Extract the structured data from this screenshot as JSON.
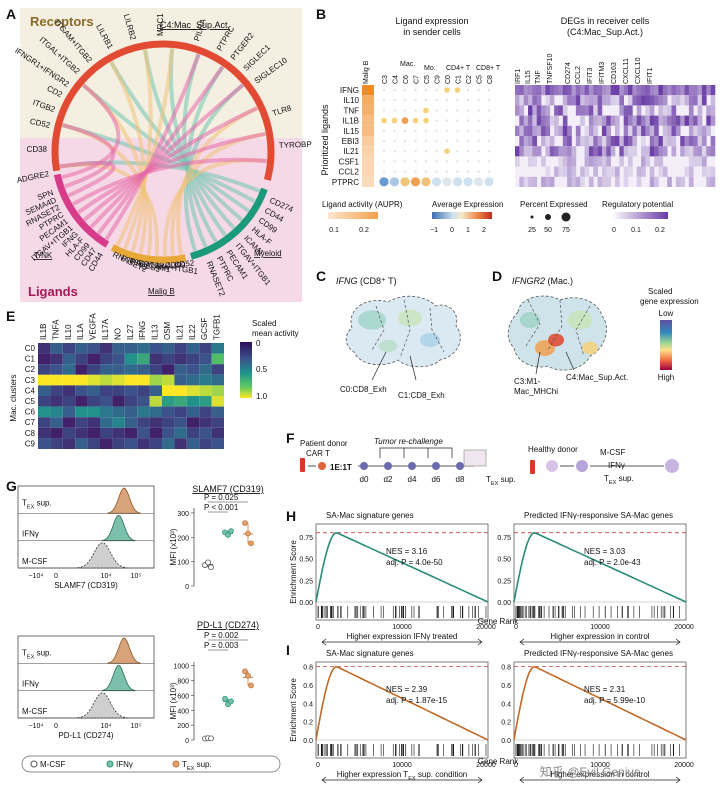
{
  "panel_letters": [
    "A",
    "B",
    "C",
    "D",
    "E",
    "F",
    "G",
    "H",
    "I"
  ],
  "panelA": {
    "receptors_label": "Receptors",
    "ligands_label": "Ligands",
    "receiver_label": "C4:Mac_Sup.Act.",
    "group_labels": [
      "T/NK",
      "Malig B",
      "Myeloid"
    ],
    "receptor_labels": [
      "ADGRE2",
      "CD38",
      "CD52",
      "ITGB2",
      "CD2",
      "IFNGR1+IFNGR2",
      "ITGAL+ITGB2",
      "ITGAM+ITGB2",
      "LILRB1",
      "LILRB2",
      "MRC1",
      "PILRA",
      "PTPRC",
      "PTGER2",
      "SIGLEC1",
      "SIGLEC10",
      "TLR8",
      "TYROBP"
    ],
    "ligand_labels_left": [
      "SPN",
      "SEMA4D",
      "RNASET2",
      "PTPRC",
      "PECAM1",
      "ITGAV+ITGB1",
      "IFNG",
      "HLA-F",
      "CD99",
      "CD47",
      "CD44"
    ],
    "ligand_labels_mid": [
      "RNASET2",
      "PTPRC",
      "PTGES3",
      "PECAM1",
      "ITGAV+ITGB1",
      "HLA-F",
      "CD99",
      "CD52"
    ],
    "ligand_labels_right": [
      "CD274",
      "CD44",
      "CD99",
      "HLA-F",
      "ICAM1",
      "ITGAV+ITGB1",
      "PECAM1",
      "PTPRC",
      "RNASET2"
    ]
  },
  "panelB": {
    "title_ligand": "Ligand expression in sender cells",
    "title_deg": "DEGs in receiver cells (C4:Mac_Sup.Act.)",
    "yaxis_label": "Prioritized ligands",
    "ligands": [
      "IFNG",
      "IL10",
      "TNF",
      "IL1B",
      "IL15",
      "EBI3",
      "IL21",
      "CSF1",
      "CCL2",
      "PTPRC"
    ],
    "activity": [
      0.27,
      0.21,
      0.2,
      0.18,
      0.18,
      0.15,
      0.14,
      0.13,
      0.13,
      0.12
    ],
    "cluster_cols": [
      "C3",
      "C4",
      "C6",
      "C7",
      "C5",
      "C9",
      "C0",
      "C1",
      "C2",
      "C5",
      "C8"
    ],
    "group_headers": [
      "Malig B",
      "Mac.",
      "Mo.",
      "CD4+ T",
      "CD8+ T"
    ],
    "deg_genes": [
      "IRF1",
      "IL15",
      "TNF",
      "TNFSF10",
      "CD274",
      "CCL2",
      "IFIT3",
      "IFITM3",
      "CD163",
      "CXCL11",
      "CXCL10",
      "IFIT1"
    ],
    "legend_activity_title": "Ligand activity (AUPR)",
    "legend_activity_ticks": [
      "0.1",
      "0.2"
    ],
    "legend_expr_title": "Average Expression",
    "legend_expr_ticks": [
      "−1",
      "0",
      "1",
      "2"
    ],
    "legend_pct_title": "Percent Expressed",
    "legend_pct_ticks": [
      "25",
      "50",
      "75"
    ],
    "legend_reg_title": "Regulatory potential",
    "legend_reg_ticks": [
      "0",
      "0.1",
      "0.2"
    ]
  },
  "panelC": {
    "gene": "IFNG",
    "cell": "(CD8⁺ T)",
    "labels": [
      "C0:CD8_Exh",
      "C1:CD8_Exh"
    ]
  },
  "panelD": {
    "gene": "IFNGR2",
    "cell": "(Mac.)",
    "labels": [
      "C3:M1-Mac_MHChi",
      "C4:Mac_Sup.Act."
    ],
    "legend_title": "Scaled gene expression",
    "legend_low": "Low",
    "legend_high": "High"
  },
  "panelE": {
    "cols": [
      "IL1B",
      "TNFA",
      "IL10",
      "IL1A",
      "VEGFA",
      "IL17A",
      "NO",
      "IL27",
      "IFNG",
      "IL13",
      "OSM",
      "IL21",
      "IL22",
      "GCSF",
      "TGFB1"
    ],
    "rows": [
      "C0",
      "C1",
      "C2",
      "C3",
      "C4",
      "C5",
      "C6",
      "C7",
      "C8",
      "C9"
    ],
    "ylabel": "Mac. clusters",
    "legend_title": "Scaled mean activity",
    "legend_ticks": [
      "0",
      "0.5",
      "1.0"
    ],
    "values": [
      [
        0.15,
        0.3,
        0.2,
        0.3,
        0.25,
        0.15,
        0.3,
        0.3,
        0.35,
        0.25,
        0.3,
        0.2,
        0.3,
        0.2,
        0.4
      ],
      [
        0.1,
        0.15,
        0.3,
        0.2,
        0.1,
        0.2,
        0.25,
        0.5,
        0.6,
        0.15,
        0.2,
        0.15,
        0.2,
        0.25,
        0.7
      ],
      [
        0.2,
        0.25,
        0.35,
        0.1,
        0.2,
        0.3,
        0.3,
        0.35,
        0.3,
        0.2,
        0.1,
        0.3,
        0.25,
        0.35,
        0.2
      ],
      [
        1.0,
        1.0,
        1.0,
        1.0,
        0.95,
        0.9,
        0.95,
        1.0,
        1.0,
        0.85,
        0.9,
        0.3,
        0.35,
        0.4,
        0.35
      ],
      [
        0.3,
        0.2,
        0.15,
        0.25,
        0.3,
        0.2,
        0.2,
        0.25,
        0.2,
        0.3,
        1.0,
        1.0,
        0.95,
        0.9,
        0.85
      ],
      [
        0.2,
        0.15,
        0.2,
        0.1,
        0.2,
        0.25,
        0.1,
        0.2,
        0.25,
        0.9,
        0.55,
        0.6,
        0.5,
        0.55,
        0.95
      ],
      [
        0.5,
        0.45,
        0.3,
        0.5,
        0.5,
        0.4,
        0.35,
        0.3,
        0.4,
        0.35,
        0.25,
        0.2,
        0.3,
        0.2,
        0.3
      ],
      [
        0.2,
        0.3,
        0.1,
        0.2,
        0.15,
        0.35,
        0.45,
        0.3,
        0.2,
        0.15,
        0.2,
        0.25,
        0.1,
        0.15,
        0.2
      ],
      [
        0.15,
        0.1,
        0.2,
        0.15,
        0.1,
        0.2,
        0.15,
        0.1,
        0.25,
        0.1,
        0.25,
        0.35,
        0.2,
        0.25,
        0.15
      ],
      [
        0.25,
        0.2,
        0.15,
        0.3,
        0.2,
        0.1,
        0.2,
        0.25,
        0.15,
        0.2,
        0.35,
        0.15,
        0.3,
        0.2,
        0.25
      ]
    ]
  },
  "panelF": {
    "patient_label": "Patient donor",
    "cart_label": "CAR T",
    "ratio": "1E:1T",
    "rechallenge": "Tumor re-challenge",
    "days": [
      "d0",
      "d2",
      "d4",
      "d6",
      "d8"
    ],
    "tex_sup": "T",
    "tex_sub": "EX",
    "tex_suffix": " sup.",
    "healthy_label": "Healthy donor",
    "conditions": [
      "M-CSF",
      "IFNγ",
      "T"
    ],
    "cond_ex_sub": "EX",
    "cond_ex_suffix": " sup."
  },
  "panelG": {
    "top": {
      "title": "SLAMF7 (CD319)",
      "xlabel": "SLAMF7 (CD319)",
      "ylabel": "MFI (x10³)",
      "yticks": [
        0,
        100,
        200,
        300
      ],
      "ylim": [
        0,
        320
      ],
      "pvals": [
        "P = 0.025",
        "P < 0.001"
      ],
      "hist_labels": [
        "T",
        "IFNγ",
        "M-CSF"
      ],
      "xticks": [
        "−10⁴",
        "0",
        "10⁴",
        "10⁵"
      ],
      "groups": [
        {
          "name": "M-CSF",
          "points": [
            86,
            97,
            77
          ],
          "mean": 88
        },
        {
          "name": "IFNγ",
          "points": [
            220,
            210,
            225
          ],
          "mean": 216
        },
        {
          "name": "TEX sup.",
          "points": [
            258,
            215,
            175
          ],
          "mean": 213
        }
      ]
    },
    "bottom": {
      "title": "PD-L1 (CD274)",
      "xlabel": "PD-L1 (CD274)",
      "ylabel": "MFI (x10³)",
      "yticks": [
        0,
        200,
        400,
        600,
        800,
        1000
      ],
      "ylim": [
        0,
        1050
      ],
      "pvals": [
        "P = 0.002",
        "P = 0.003"
      ],
      "hist_labels": [
        "T",
        "IFNγ",
        "M-CSF"
      ],
      "xticks": [
        "−10⁴",
        "0",
        "10⁴",
        "10⁵"
      ],
      "groups": [
        {
          "name": "M-CSF",
          "points": [
            20,
            25,
            22
          ],
          "mean": 22
        },
        {
          "name": "IFNγ",
          "points": [
            555,
            480,
            520
          ],
          "mean": 520
        },
        {
          "name": "TEX sup.",
          "points": [
            925,
            865,
            735
          ],
          "mean": 840
        }
      ]
    },
    "legend": [
      "M-CSF",
      "IFNγ",
      "T"
    ],
    "legend_ex_sub": "EX",
    "legend_ex_suffix": " sup."
  },
  "panelH": {
    "left": {
      "title": "SA-Mac signature genes",
      "nes": "NES = 3.16",
      "padj": "adj. P = 4.0e-50",
      "arrow_label": "Higher expression IFNγ treated"
    },
    "right": {
      "title": "Predicted IFNγ-responsive SA-Mac genes",
      "nes": "NES = 3.03",
      "padj": "adj. P = 2.0e-43",
      "arrow_label": "Higher expression in control"
    },
    "ylabel": "Enrichment Score",
    "xlabel": "Gene Rank",
    "yticks": [
      "0.00",
      "0.25",
      "0.50",
      "0.75"
    ],
    "xticks": [
      "0",
      "10000",
      "20000"
    ],
    "color": "#2a8c7a"
  },
  "panelI": {
    "left": {
      "title": "SA-Mac signature genes",
      "nes": "NES = 2.39",
      "padj": "adj. P = 1.87e-15",
      "arrow_label": "Higher expression T",
      "arrow_sub": "EX",
      "arrow_suffix": " sup. condition"
    },
    "right": {
      "title": "Predicted IFNγ-responsive SA-Mac genes",
      "nes": "NES = 2.31",
      "padj": "adj. P = 5.99e-10",
      "arrow_label": "Higher expression in control"
    },
    "ylabel": "Enrichment Score",
    "xlabel": "Gene Rank",
    "yticks": [
      "0.0",
      "0.2",
      "0.4",
      "0.6",
      "0.8"
    ],
    "xticks": [
      "0",
      "10000",
      "20000"
    ],
    "color": "#c06a28"
  },
  "watermark": "知乎 @Evil Genius"
}
